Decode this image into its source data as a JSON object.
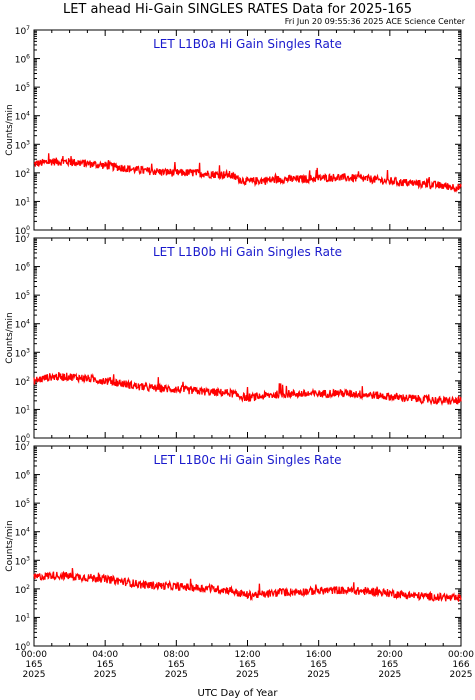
{
  "header": {
    "title": "LET ahead Hi-Gain SINGLES RATES Data for 2025-165",
    "timestamp": "Fri Jun 20 09:55:36 2025 ACE Science Center"
  },
  "x_axis_label": "UTC Day of Year",
  "colors": {
    "series": "#ff0000",
    "panel_title": "#1a1acc",
    "axes": "#000000"
  },
  "chart_data": [
    {
      "type": "line",
      "title": "LET L1B0a Hi Gain Singles Rate",
      "ylabel": "Counts/min",
      "yscale": "log",
      "ylim": [
        1,
        10000000
      ],
      "xlim": [
        0,
        24
      ],
      "x_unit": "hours UTC, day 165 of 2025",
      "grid": false,
      "series": [
        {
          "x": [
            0,
            1,
            2,
            3,
            4,
            5,
            6,
            7,
            8,
            9,
            10,
            11,
            11.5,
            12,
            13,
            14,
            15,
            16,
            17,
            18,
            19,
            20,
            21,
            22,
            23,
            24
          ],
          "values": [
            200,
            250,
            240,
            210,
            180,
            150,
            120,
            110,
            100,
            100,
            90,
            85,
            60,
            50,
            55,
            60,
            60,
            65,
            70,
            65,
            60,
            50,
            45,
            40,
            35,
            30
          ]
        }
      ]
    },
    {
      "type": "line",
      "title": "LET L1B0b Hi Gain Singles Rate",
      "ylabel": "Counts/min",
      "yscale": "log",
      "ylim": [
        1,
        10000000
      ],
      "xlim": [
        0,
        24
      ],
      "x_unit": "hours UTC, day 165 of 2025",
      "grid": false,
      "series": [
        {
          "x": [
            0,
            1,
            2,
            3,
            4,
            5,
            6,
            7,
            8,
            9,
            10,
            11,
            11.5,
            12,
            13,
            14,
            15,
            16,
            17,
            18,
            19,
            20,
            21,
            22,
            23,
            24
          ],
          "values": [
            100,
            140,
            140,
            120,
            100,
            80,
            60,
            55,
            50,
            45,
            40,
            38,
            30,
            25,
            30,
            35,
            35,
            35,
            38,
            35,
            32,
            28,
            25,
            22,
            20,
            20
          ]
        }
      ]
    },
    {
      "type": "line",
      "title": "LET L1B0c Hi Gain Singles Rate",
      "ylabel": "Counts/min",
      "yscale": "log",
      "ylim": [
        1,
        10000000
      ],
      "xlim": [
        0,
        24
      ],
      "x_unit": "hours UTC, day 165 of 2025",
      "grid": false,
      "series": [
        {
          "x": [
            0,
            1,
            2,
            3,
            4,
            5,
            6,
            7,
            8,
            9,
            10,
            11,
            11.5,
            12,
            13,
            14,
            15,
            16,
            17,
            18,
            19,
            20,
            21,
            22,
            23,
            24
          ],
          "values": [
            250,
            300,
            280,
            250,
            220,
            180,
            140,
            130,
            120,
            110,
            100,
            90,
            70,
            60,
            65,
            75,
            80,
            85,
            90,
            85,
            80,
            70,
            60,
            55,
            50,
            45
          ]
        }
      ]
    }
  ],
  "x_ticks": [
    {
      "time": "00:00",
      "doy": "165",
      "year": "2025"
    },
    {
      "time": "04:00",
      "doy": "165",
      "year": "2025"
    },
    {
      "time": "08:00",
      "doy": "165",
      "year": "2025"
    },
    {
      "time": "12:00",
      "doy": "165",
      "year": "2025"
    },
    {
      "time": "16:00",
      "doy": "165",
      "year": "2025"
    },
    {
      "time": "20:00",
      "doy": "165",
      "year": "2025"
    },
    {
      "time": "00:00",
      "doy": "166",
      "year": "2025"
    }
  ],
  "y_tick_exponents": [
    "0",
    "1",
    "2",
    "3",
    "4",
    "5",
    "6",
    "7"
  ],
  "y_tick_base": "10"
}
